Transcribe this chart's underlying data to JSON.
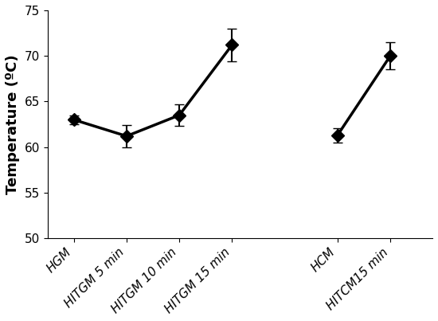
{
  "categories": [
    "HGM",
    "HITGM 5 min",
    "HITGM 10 min",
    "HITGM 15 min",
    "HCM",
    "HITCM15 min"
  ],
  "x_positions": [
    0,
    1,
    2,
    3,
    5,
    6
  ],
  "values": [
    63.0,
    61.2,
    63.5,
    71.2,
    61.3,
    70.0
  ],
  "errors": [
    0.5,
    1.2,
    1.2,
    1.8,
    0.8,
    1.5
  ],
  "group1_indices": [
    0,
    1,
    2,
    3
  ],
  "group2_indices": [
    4,
    5
  ],
  "ylabel": "Temperature (ºC)",
  "ylim": [
    50,
    75
  ],
  "yticks": [
    50,
    55,
    60,
    65,
    70,
    75
  ],
  "marker": "D",
  "marker_size": 8,
  "line_color": "black",
  "line_width": 2.5,
  "marker_facecolor": "black",
  "capsize": 4,
  "elinewidth": 1.5,
  "background_color": "#ffffff",
  "tick_fontsize": 11,
  "label_fontsize": 13,
  "xlim": [
    -0.5,
    6.8
  ]
}
